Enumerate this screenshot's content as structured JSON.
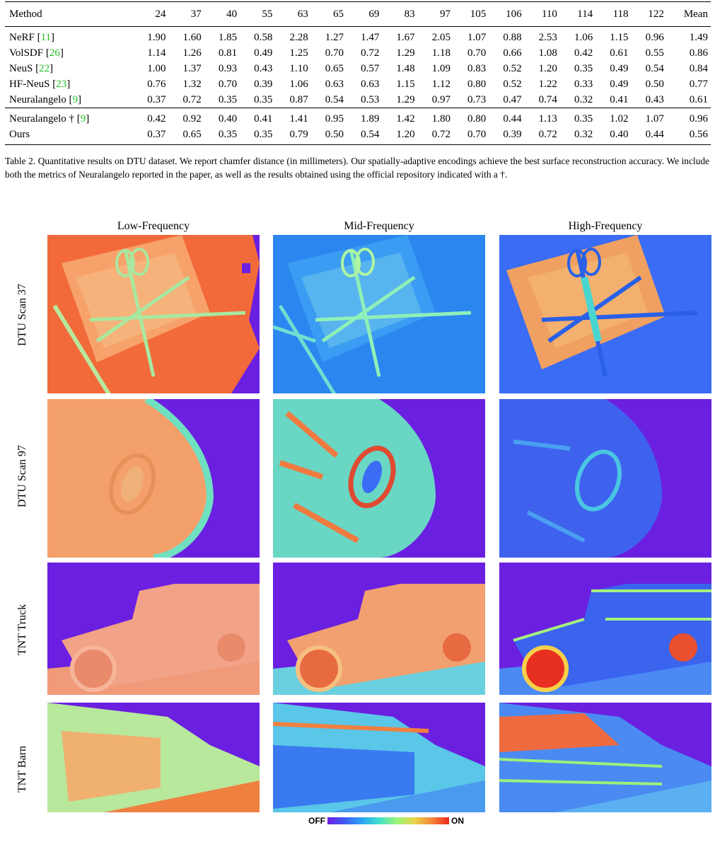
{
  "table": {
    "columns": [
      "Method",
      "24",
      "37",
      "40",
      "55",
      "63",
      "65",
      "69",
      "83",
      "97",
      "105",
      "106",
      "110",
      "114",
      "118",
      "122",
      "Mean"
    ],
    "group_a": [
      {
        "name": "NeRF",
        "ref": "11",
        "values": [
          "1.90",
          "1.60",
          "1.85",
          "0.58",
          "2.28",
          "1.27",
          "1.47",
          "1.67",
          "2.05",
          "1.07",
          "0.88",
          "2.53",
          "1.06",
          "1.15",
          "0.96",
          "1.49"
        ],
        "bold": []
      },
      {
        "name": "VolSDF",
        "ref": "26",
        "values": [
          "1.14",
          "1.26",
          "0.81",
          "0.49",
          "1.25",
          "0.70",
          "0.72",
          "1.29",
          "1.18",
          "0.70",
          "0.66",
          "1.08",
          "0.42",
          "0.61",
          "0.55",
          "0.86"
        ],
        "bold": []
      },
      {
        "name": "NeuS",
        "ref": "22",
        "values": [
          "1.00",
          "1.37",
          "0.93",
          "0.43",
          "1.10",
          "0.65",
          "0.57",
          "1.48",
          "1.09",
          "0.83",
          "0.52",
          "1.20",
          "0.35",
          "0.49",
          "0.54",
          "0.84"
        ],
        "bold": []
      },
      {
        "name": "HF-NeuS",
        "ref": "23",
        "values": [
          "0.76",
          "1.32",
          "0.70",
          "0.39",
          "1.06",
          "0.63",
          "0.63",
          "1.15",
          "1.12",
          "0.80",
          "0.52",
          "1.22",
          "0.33",
          "0.49",
          "0.50",
          "0.77"
        ],
        "bold": []
      },
      {
        "name": "Neuralangelo",
        "ref": "9",
        "values": [
          "0.37",
          "0.72",
          "0.35",
          "0.35",
          "0.87",
          "0.54",
          "0.53",
          "1.29",
          "0.97",
          "0.73",
          "0.47",
          "0.74",
          "0.32",
          "0.41",
          "0.43",
          "0.61"
        ],
        "bold": [
          0,
          2,
          3,
          6,
          12,
          14
        ]
      }
    ],
    "group_b": [
      {
        "name": "Neuralangelo †",
        "ref": "9",
        "values": [
          "0.42",
          "0.92",
          "0.40",
          "0.41",
          "1.41",
          "0.95",
          "1.89",
          "1.42",
          "1.80",
          "0.80",
          "0.44",
          "1.13",
          "0.35",
          "1.02",
          "1.07",
          "0.96"
        ],
        "bold": []
      },
      {
        "name": "Ours",
        "ref": "",
        "values": [
          "0.37",
          "0.65",
          "0.35",
          "0.35",
          "0.79",
          "0.50",
          "0.54",
          "1.20",
          "0.72",
          "0.70",
          "0.39",
          "0.72",
          "0.32",
          "0.40",
          "0.44",
          "0.56"
        ],
        "bold": [
          0,
          1,
          2,
          3,
          4,
          5,
          7,
          8,
          9,
          10,
          11,
          12,
          13,
          15
        ]
      }
    ]
  },
  "caption": {
    "text": "Table 2. Quantitative results on DTU dataset. We report chamfer distance (in millimeters). Our spatially-adaptive encodings achieve the best surface reconstruction accuracy. We include both the metrics of Neuralangelo reported in the paper, as well as the results obtained using the official repository indicated with a †."
  },
  "figure": {
    "columns": [
      "Low-Frequency",
      "Mid-Frequency",
      "High-Frequency"
    ],
    "rows": [
      "DTU Scan 37",
      "DTU Scan 97",
      "TNT Truck",
      "TNT Barn"
    ],
    "colorbar": {
      "off_label": "OFF",
      "on_label": "ON",
      "colors": [
        "#6b1fe0",
        "#3f5cf5",
        "#2aa6f5",
        "#44e0c8",
        "#9cf57a",
        "#e8d64a",
        "#f7853a",
        "#e82a1c"
      ]
    }
  }
}
